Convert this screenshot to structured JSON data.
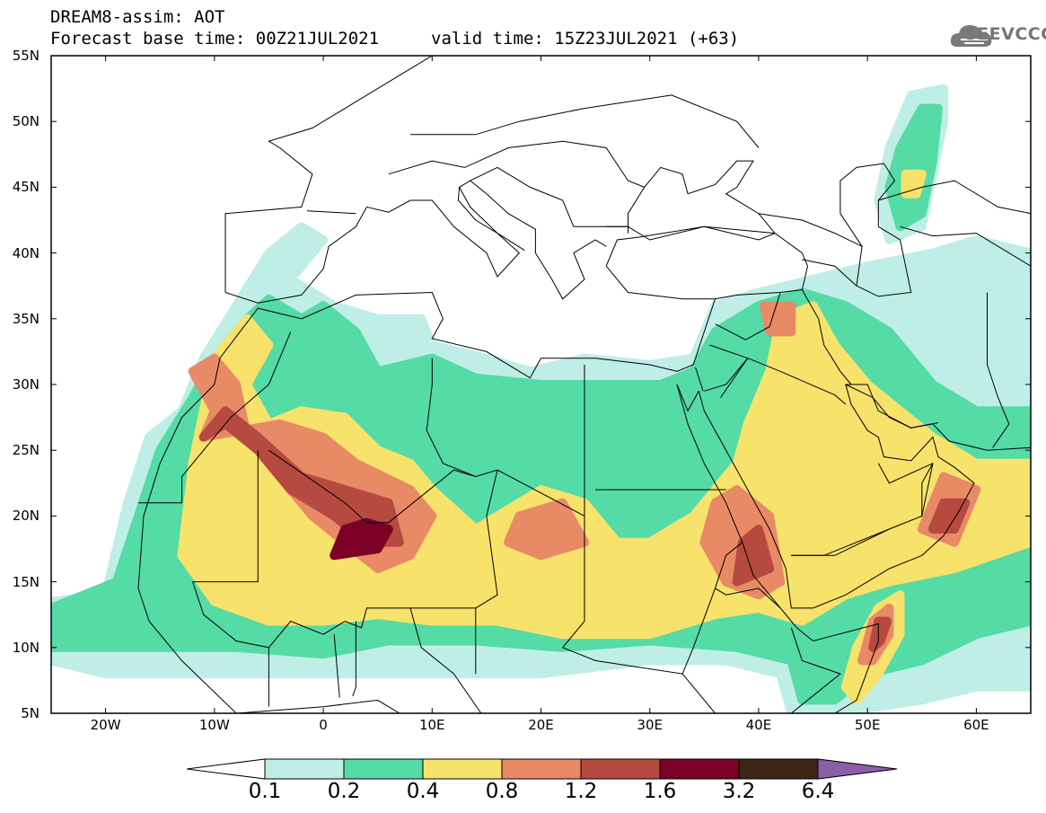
{
  "header": {
    "title": "DREAM8-assim: AOT",
    "base_time": "Forecast base time: 00Z21JUL2021",
    "valid_time": "valid time: 15Z23JUL2021 (+63)"
  },
  "logo": {
    "text": "SEEVCCC",
    "icon": "cloud-icon"
  },
  "map": {
    "lon_range": [
      -25,
      65
    ],
    "lat_range": [
      5,
      55
    ],
    "lat_ticks": [
      "55N",
      "50N",
      "45N",
      "40N",
      "35N",
      "30N",
      "25N",
      "20N",
      "15N",
      "10N",
      "5N"
    ],
    "lon_ticks": [
      "20W",
      "10W",
      "0",
      "10E",
      "20E",
      "30E",
      "40E",
      "50E",
      "60E"
    ],
    "variable": "AOT"
  },
  "colorbar": {
    "labels": [
      "0.1",
      "0.2",
      "0.4",
      "0.8",
      "1.2",
      "1.6",
      "3.2",
      "6.4"
    ],
    "colors": [
      "#ffffff",
      "#bfeee6",
      "#55dba6",
      "#f7e26c",
      "#e88a66",
      "#b64a40",
      "#7d0026",
      "#3e2415",
      "#8a5fa8"
    ]
  },
  "chart_data": {
    "type": "heatmap",
    "title": "DREAM8-assim: AOT",
    "x_range": [
      -25,
      65
    ],
    "y_range": [
      5,
      55
    ],
    "levels": [
      0.1,
      0.2,
      0.4,
      0.8,
      1.2,
      1.6,
      3.2,
      6.4
    ]
  }
}
